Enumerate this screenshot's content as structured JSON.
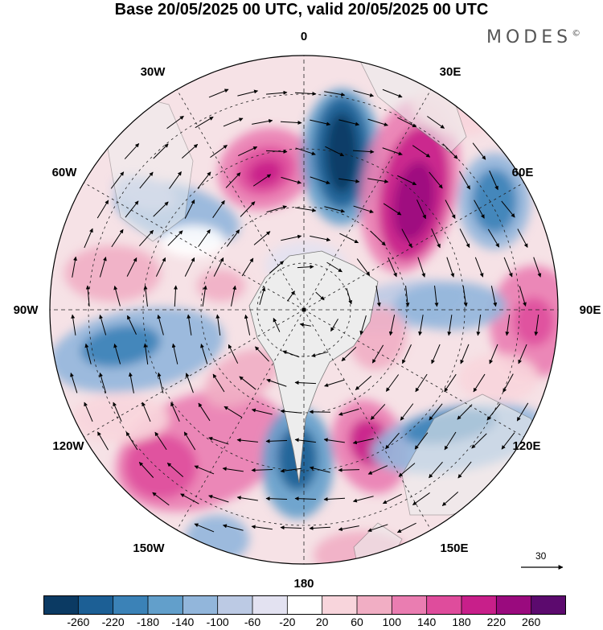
{
  "title": "Base 20/05/2025 00 UTC, valid 20/05/2025 00 UTC",
  "logo": "MODES",
  "logo_mark": "©",
  "map": {
    "projection": "polar-stereographic",
    "hemisphere": "south",
    "longitude_labels": [
      "0",
      "30E",
      "60E",
      "90E",
      "120E",
      "150E",
      "180",
      "150W",
      "120W",
      "90W",
      "60W",
      "30W"
    ],
    "reference_vector": "30",
    "colors": {
      "land": "#ededed",
      "coast": "#777777",
      "grid": "#222222",
      "arrow": "#000000"
    }
  },
  "colorbar": {
    "labels": [
      "-260",
      "-220",
      "-180",
      "-140",
      "-100",
      "-60",
      "-20",
      "20",
      "60",
      "100",
      "140",
      "180",
      "220",
      "260"
    ],
    "colors": [
      "#0b3a63",
      "#1c5f95",
      "#3b82b7",
      "#629fcb",
      "#92b6db",
      "#bccae4",
      "#e3e2f1",
      "#ffffff",
      "#f8d5dc",
      "#f1aec4",
      "#ea7db1",
      "#df4c9c",
      "#c81f8a",
      "#9a0a7e",
      "#5c0a6e"
    ]
  }
}
